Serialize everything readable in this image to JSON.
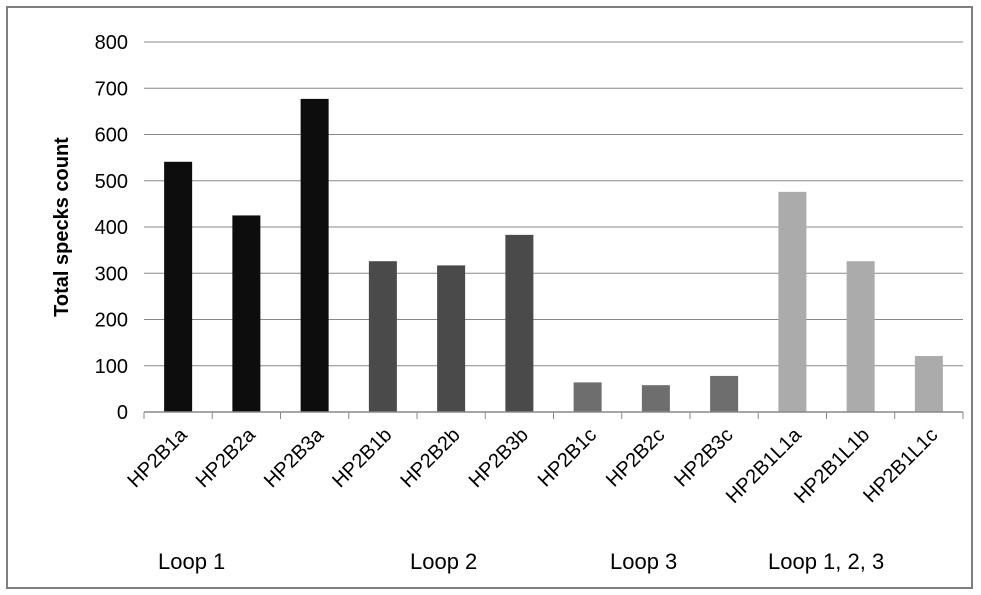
{
  "chart_data": {
    "type": "bar",
    "title": "",
    "xlabel": "",
    "ylabel": "Total specks count",
    "ylim": [
      0,
      800
    ],
    "yticks": [
      0,
      100,
      200,
      300,
      400,
      500,
      600,
      700,
      800
    ],
    "grid": true,
    "legend": "none",
    "categories": [
      "HP2B1a",
      "HP2B2a",
      "HP2B3a",
      "HP2B1b",
      "HP2B2b",
      "HP2B3b",
      "HP2B1c",
      "HP2B2c",
      "HP2B3c",
      "HP2B1L1a",
      "HP2B1L1b",
      "HP2B1L1c"
    ],
    "values": [
      541,
      425,
      677,
      326,
      317,
      383,
      64,
      58,
      78,
      476,
      326,
      121
    ],
    "bar_colors": [
      "#0d0d0d",
      "#0d0d0d",
      "#0d0d0d",
      "#4a4a4a",
      "#4a4a4a",
      "#4a4a4a",
      "#6e6e6e",
      "#6e6e6e",
      "#6e6e6e",
      "#ababab",
      "#ababab",
      "#ababab"
    ],
    "groups": [
      {
        "label": "Loop 1",
        "categories": [
          "HP2B1a",
          "HP2B2a",
          "HP2B3a"
        ]
      },
      {
        "label": "Loop 2",
        "categories": [
          "HP2B1b",
          "HP2B2b",
          "HP2B3b"
        ]
      },
      {
        "label": "Loop 3",
        "categories": [
          "HP2B1c",
          "HP2B2c",
          "HP2B3c"
        ]
      },
      {
        "label": "Loop 1, 2, 3",
        "categories": [
          "HP2B1L1a",
          "HP2B1L1b",
          "HP2B1L1c"
        ]
      }
    ]
  }
}
